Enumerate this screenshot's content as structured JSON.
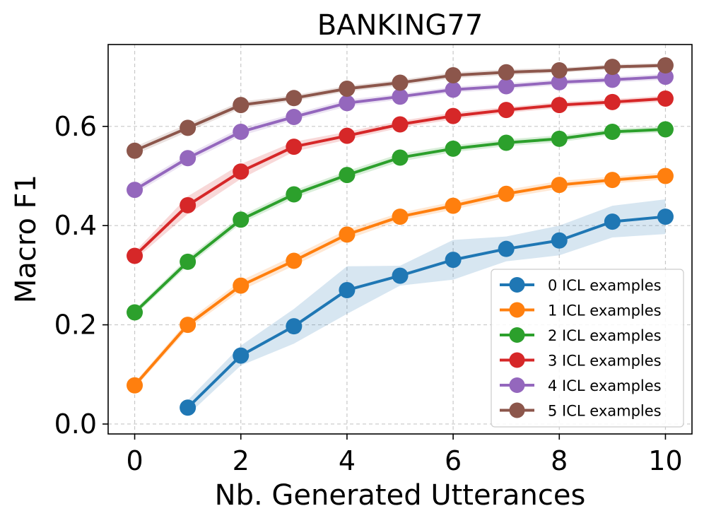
{
  "chart_data": {
    "type": "line",
    "title": "BANKING77",
    "xlabel": "Nb. Generated Utterances",
    "ylabel": "Macro F1",
    "xlim": [
      -0.5,
      10.5
    ],
    "ylim": [
      -0.02,
      0.765
    ],
    "xticks": [
      0,
      2,
      4,
      6,
      8,
      10
    ],
    "xtick_labels": [
      "0",
      "2",
      "4",
      "6",
      "8",
      "10"
    ],
    "yticks": [
      0.0,
      0.2,
      0.4,
      0.6
    ],
    "ytick_labels": [
      "0.0",
      "0.2",
      "0.4",
      "0.6"
    ],
    "grid": true,
    "legend_position": "lower-right",
    "series": [
      {
        "name": "0 ICL examples",
        "color": "#1f77b4",
        "x": [
          1,
          2,
          3,
          4,
          5,
          6,
          7,
          8,
          9,
          10
        ],
        "values": [
          0.033,
          0.138,
          0.197,
          0.27,
          0.299,
          0.331,
          0.353,
          0.37,
          0.408,
          0.418
        ],
        "band": [
          0.015,
          0.02,
          0.035,
          0.048,
          0.02,
          0.04,
          0.025,
          0.03,
          0.032,
          0.035
        ]
      },
      {
        "name": "1 ICL examples",
        "color": "#ff7f0e",
        "x": [
          0,
          1,
          2,
          3,
          4,
          5,
          6,
          7,
          8,
          9,
          10
        ],
        "values": [
          0.078,
          0.2,
          0.279,
          0.329,
          0.382,
          0.418,
          0.44,
          0.464,
          0.482,
          0.492,
          0.5
        ],
        "band": [
          0.006,
          0.008,
          0.01,
          0.01,
          0.01,
          0.008,
          0.008,
          0.008,
          0.008,
          0.007,
          0.007
        ]
      },
      {
        "name": "2 ICL examples",
        "color": "#2ca02c",
        "x": [
          0,
          1,
          2,
          3,
          4,
          5,
          6,
          7,
          8,
          9,
          10
        ],
        "values": [
          0.225,
          0.327,
          0.412,
          0.463,
          0.502,
          0.537,
          0.555,
          0.567,
          0.575,
          0.589,
          0.594
        ],
        "band": [
          0.006,
          0.008,
          0.008,
          0.008,
          0.008,
          0.008,
          0.007,
          0.007,
          0.007,
          0.006,
          0.006
        ]
      },
      {
        "name": "3 ICL examples",
        "color": "#d62728",
        "x": [
          0,
          1,
          2,
          3,
          4,
          5,
          6,
          7,
          8,
          9,
          10
        ],
        "values": [
          0.339,
          0.441,
          0.509,
          0.559,
          0.581,
          0.604,
          0.621,
          0.633,
          0.643,
          0.649,
          0.656
        ],
        "band": [
          0.008,
          0.018,
          0.015,
          0.01,
          0.008,
          0.007,
          0.007,
          0.006,
          0.006,
          0.006,
          0.006
        ]
      },
      {
        "name": "4 ICL examples",
        "color": "#9467bd",
        "x": [
          0,
          1,
          2,
          3,
          4,
          5,
          6,
          7,
          8,
          9,
          10
        ],
        "values": [
          0.472,
          0.536,
          0.589,
          0.619,
          0.647,
          0.66,
          0.674,
          0.681,
          0.689,
          0.694,
          0.7
        ],
        "band": [
          0.008,
          0.008,
          0.008,
          0.007,
          0.007,
          0.006,
          0.006,
          0.006,
          0.006,
          0.006,
          0.006
        ]
      },
      {
        "name": "5 ICL examples",
        "color": "#8c564b",
        "x": [
          0,
          1,
          2,
          3,
          4,
          5,
          6,
          7,
          8,
          9,
          10
        ],
        "values": [
          0.551,
          0.597,
          0.643,
          0.657,
          0.676,
          0.688,
          0.703,
          0.709,
          0.713,
          0.72,
          0.723
        ],
        "band": [
          0.008,
          0.008,
          0.007,
          0.006,
          0.006,
          0.006,
          0.006,
          0.006,
          0.005,
          0.005,
          0.005
        ]
      }
    ]
  }
}
